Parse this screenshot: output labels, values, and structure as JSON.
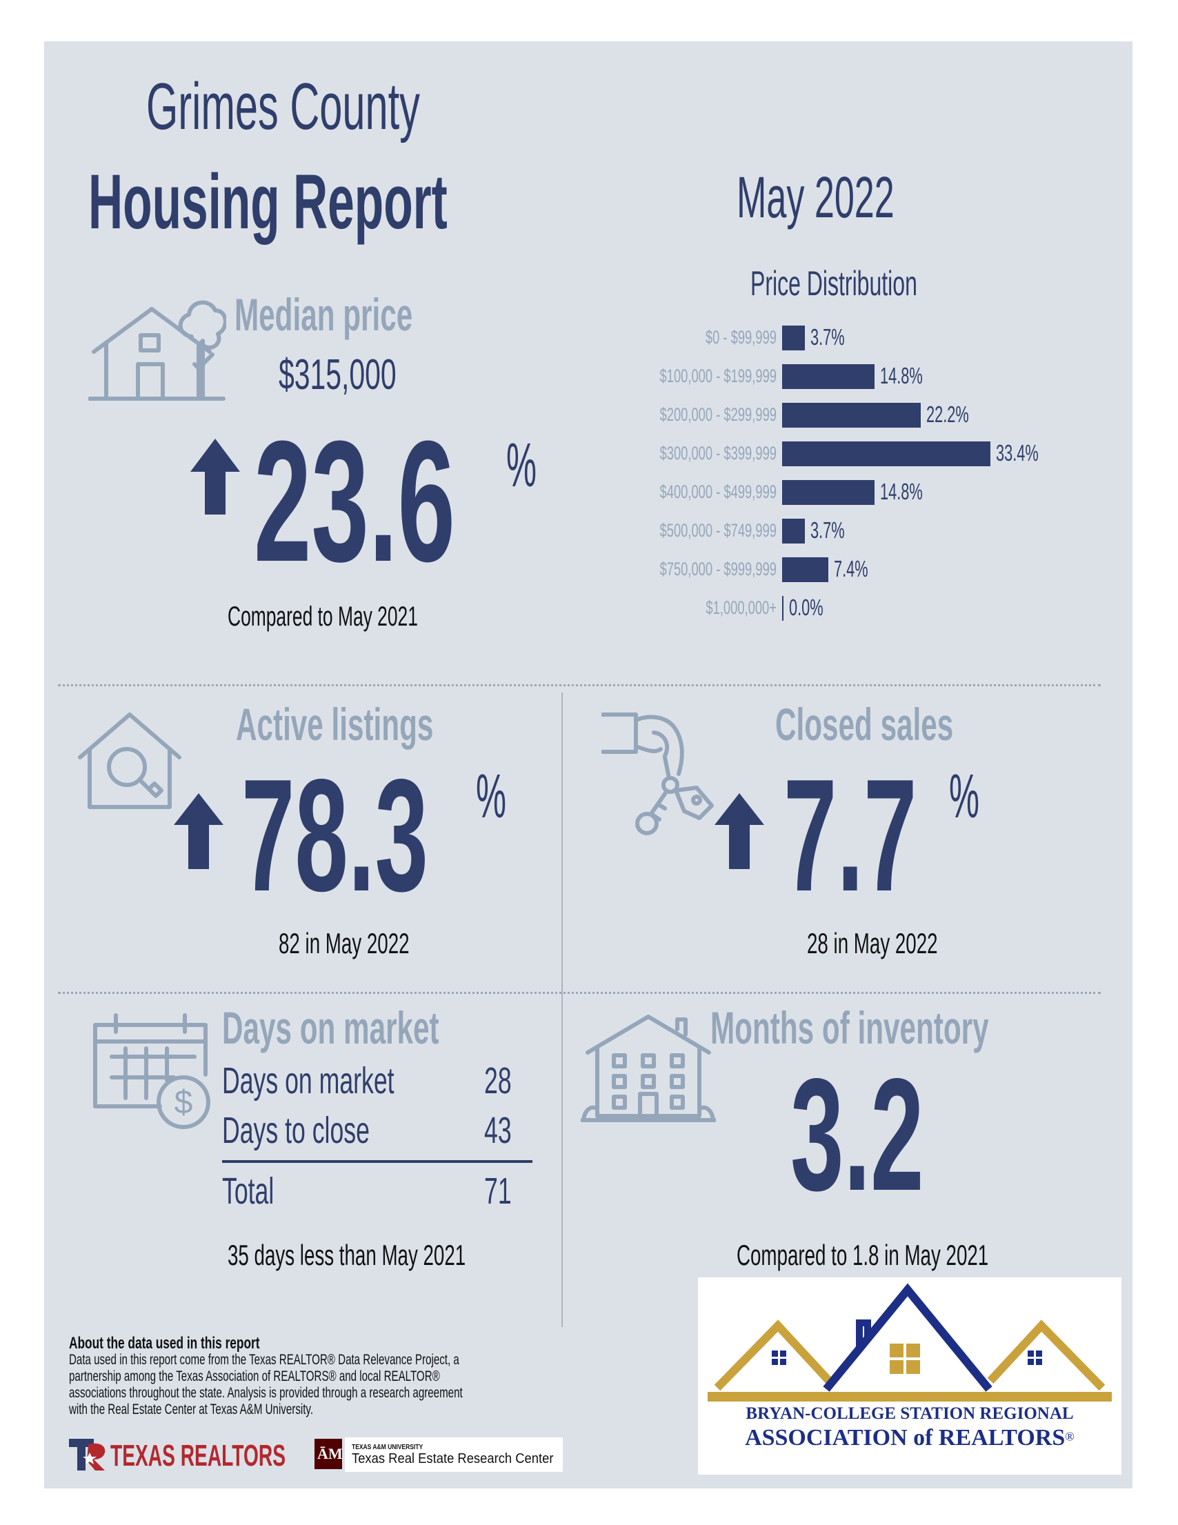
{
  "header": {
    "county": "Grimes County",
    "report": "Housing Report",
    "period": "May 2022"
  },
  "median": {
    "label": "Median price",
    "price": "$315,000",
    "change": "23.6",
    "unit": "%",
    "direction": "up",
    "compare": "Compared to May 2021"
  },
  "chart_data": {
    "type": "bar",
    "title": "Price Distribution",
    "orientation": "horizontal",
    "categories": [
      "$0 - $99,999",
      "$100,000 - $199,999",
      "$200,000 - $299,999",
      "$300,000 - $399,999",
      "$400,000 - $499,999",
      "$500,000 - $749,999",
      "$750,000 - $999,999",
      "$1,000,000+"
    ],
    "values": [
      3.7,
      14.8,
      22.2,
      33.4,
      14.8,
      3.7,
      7.4,
      0.0
    ],
    "value_labels": [
      "3.7%",
      "14.8%",
      "22.2%",
      "33.4%",
      "14.8%",
      "3.7%",
      "7.4%",
      "0.0%"
    ],
    "bar_color": "#2f3e6b"
  },
  "active": {
    "label": "Active listings",
    "change": "78.3",
    "unit": "%",
    "direction": "up",
    "note": "82 in May 2022"
  },
  "closed": {
    "label": "Closed sales",
    "change": "7.7",
    "unit": "%",
    "direction": "up",
    "note": "28 in May 2022"
  },
  "dom": {
    "label": "Days on market",
    "rows": [
      {
        "label": "Days on market",
        "value": "28"
      },
      {
        "label": "Days to close",
        "value": "43"
      }
    ],
    "total_label": "Total",
    "total_value": "71",
    "note": "35 days less than May 2021"
  },
  "inventory": {
    "label": "Months of inventory",
    "value": "3.2",
    "note": "Compared to 1.8 in May 2021"
  },
  "about": {
    "title": "About the data used in this report",
    "lines": [
      "Data used in this report come from the Texas REALTOR® Data Relevance Project, a",
      "partnership among the Texas Association of REALTORS® and local REALTOR®",
      "associations throughout the state. Analysis is provided through a research agreement",
      "with the Real Estate Center at Texas A&M University."
    ]
  },
  "logos": {
    "texas_realtors": "TEXAS REALTORS",
    "tamu_small": "TEXAS A&M UNIVERSITY",
    "tamu_center": "Texas Real Estate Research Center",
    "bcs_line1": "BRYAN-COLLEGE STATION REGIONAL",
    "bcs_line2": "ASSOCIATION of REALTORS",
    "bcs_reg": "®"
  },
  "colors": {
    "navy": "#2f3e6b",
    "grey_blue": "#95a6ba",
    "background": "#dce1e8",
    "gold": "#c9a23c"
  }
}
